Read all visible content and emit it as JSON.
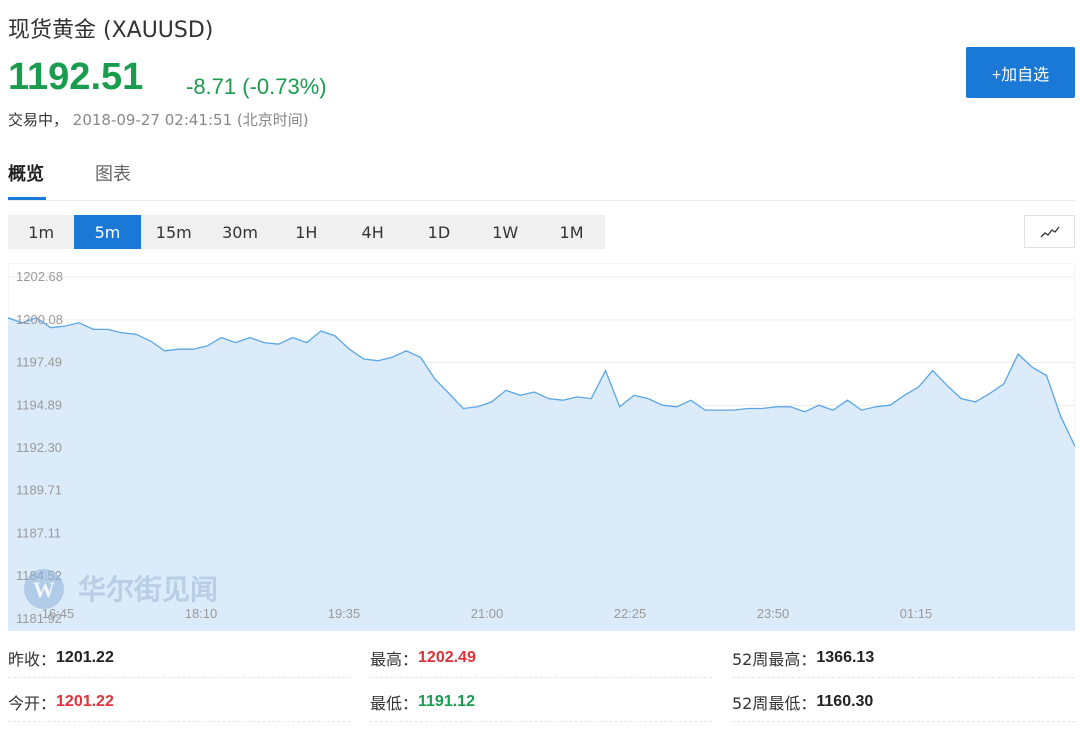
{
  "header": {
    "title": "现货黄金 (XAUUSD)",
    "price": "1192.51",
    "change": "-8.71 (-0.73%)",
    "status": "交易中，",
    "timestamp": "2018-09-27 02:41:51 (北京时间)",
    "add_button": "+加自选"
  },
  "tabs": [
    {
      "label": "概览",
      "active": true
    },
    {
      "label": "图表",
      "active": false
    }
  ],
  "periods": [
    {
      "label": "1m",
      "active": false
    },
    {
      "label": "5m",
      "active": true
    },
    {
      "label": "15m",
      "active": false
    },
    {
      "label": "30m",
      "active": false
    },
    {
      "label": "1H",
      "active": false
    },
    {
      "label": "4H",
      "active": false
    },
    {
      "label": "1D",
      "active": false
    },
    {
      "label": "1W",
      "active": false
    },
    {
      "label": "1M",
      "active": false
    }
  ],
  "chart_toggle_icon": "line-chart-icon",
  "watermark": "华尔街见闻",
  "colors": {
    "accent": "#1a78d6",
    "up": "#e0313a",
    "down": "#1a9c4e",
    "area_fill": "#dcebfa",
    "line": "#5aa6e6"
  },
  "chart_data": {
    "type": "area",
    "y_ticks": [
      "1202.68",
      "1200.08",
      "1197.49",
      "1194.89",
      "1192.30",
      "1189.71",
      "1187.11",
      "1184.52",
      "1181.92"
    ],
    "x_ticks": [
      "16:45",
      "18:10",
      "19:35",
      "21:00",
      "22:25",
      "23:50",
      "01:15"
    ],
    "ylim": [
      1181.92,
      1202.68
    ],
    "points_per_tick": 17,
    "values": [
      1200.2,
      1199.9,
      1200.2,
      1199.6,
      1199.7,
      1199.9,
      1199.5,
      1199.5,
      1199.3,
      1199.2,
      1198.8,
      1198.2,
      1198.3,
      1198.3,
      1198.5,
      1199.0,
      1198.7,
      1199.0,
      1198.7,
      1198.6,
      1199.0,
      1198.7,
      1199.4,
      1199.1,
      1198.3,
      1197.7,
      1197.6,
      1197.8,
      1198.2,
      1197.8,
      1196.5,
      1195.6,
      1194.7,
      1194.8,
      1195.1,
      1195.8,
      1195.5,
      1195.7,
      1195.3,
      1195.2,
      1195.4,
      1195.3,
      1197.0,
      1194.8,
      1195.5,
      1195.3,
      1194.9,
      1194.8,
      1195.2,
      1194.6,
      1194.6,
      1194.6,
      1194.7,
      1194.7,
      1194.8,
      1194.8,
      1194.5,
      1194.9,
      1194.6,
      1195.2,
      1194.6,
      1194.8,
      1194.9,
      1195.5,
      1196.0,
      1197.0,
      1196.1,
      1195.3,
      1195.1,
      1195.6,
      1196.2,
      1198.0,
      1197.2,
      1196.7,
      1194.2,
      1192.4
    ]
  },
  "stats": [
    {
      "label": "昨收：",
      "value": "1201.22",
      "tone": "dark"
    },
    {
      "label": "最高：",
      "value": "1202.49",
      "tone": "red"
    },
    {
      "label": "52周最高：",
      "value": "1366.13",
      "tone": "dark"
    },
    {
      "label": "今开：",
      "value": "1201.22",
      "tone": "red"
    },
    {
      "label": "最低：",
      "value": "1191.12",
      "tone": "green"
    },
    {
      "label": "52周最低：",
      "value": "1160.30",
      "tone": "dark"
    }
  ]
}
